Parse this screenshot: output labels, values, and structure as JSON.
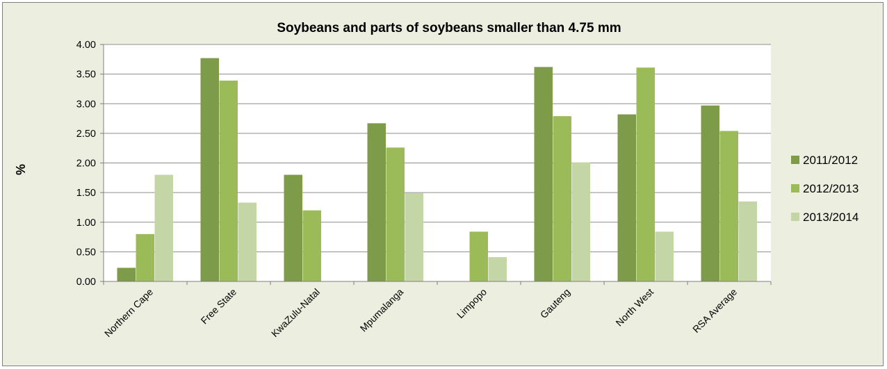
{
  "chart_data": {
    "type": "bar",
    "title": "Soybeans and parts of soybeans smaller than 4.75 mm",
    "xlabel": "",
    "ylabel": "%",
    "ylim": [
      0,
      4
    ],
    "yticks": [
      "0.00",
      "0.50",
      "1.00",
      "1.50",
      "2.00",
      "2.50",
      "3.00",
      "3.50",
      "4.00"
    ],
    "grid": true,
    "legend_position": "right",
    "categories": [
      "Northern Cape",
      "Free State",
      "KwaZulu-Natal",
      "Mpumalanga",
      "Limpopo",
      "Gauteng",
      "North West",
      "RSA Average"
    ],
    "series": [
      {
        "name": "2011/2012",
        "color": "#7e9b4a",
        "values": [
          0.23,
          3.77,
          1.8,
          2.67,
          null,
          3.62,
          2.82,
          2.97
        ]
      },
      {
        "name": "2012/2013",
        "color": "#9bbb59",
        "values": [
          0.8,
          3.39,
          1.2,
          2.26,
          0.84,
          2.79,
          3.61,
          2.54
        ]
      },
      {
        "name": "2013/2014",
        "color": "#c4d5a6",
        "values": [
          1.8,
          1.33,
          null,
          1.49,
          0.41,
          2.01,
          0.84,
          1.35
        ]
      }
    ]
  },
  "colors": {
    "background": "#eceee0",
    "plot_area": "#ffffff",
    "gridline": "#8c8c8c"
  }
}
